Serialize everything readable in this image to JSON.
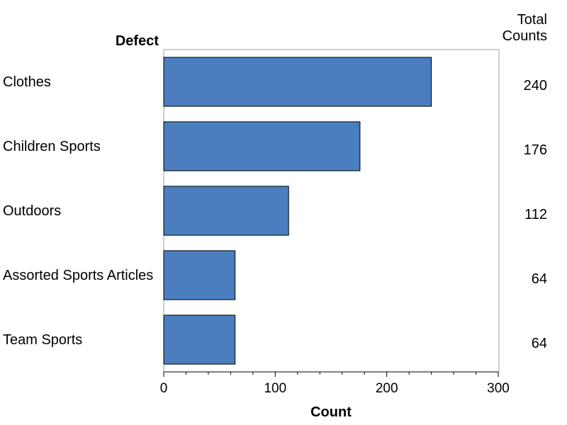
{
  "chart_data": {
    "type": "bar",
    "orientation": "horizontal",
    "categories": [
      "Clothes",
      "Children Sports",
      "Outdoors",
      "Assorted Sports Articles",
      "Team Sports"
    ],
    "values": [
      240,
      176,
      112,
      64,
      64
    ],
    "category_axis_label": "Defect",
    "xlabel": "Count",
    "xlim": [
      0,
      300
    ],
    "xticks": [
      0,
      100,
      200,
      300
    ],
    "totals_header": [
      "Total",
      "Counts"
    ],
    "totals": [
      "240",
      "176",
      "112",
      "64",
      "64"
    ],
    "grid": false,
    "bar_color": "#4a7ebf",
    "bar_edge_color": "#000000"
  }
}
